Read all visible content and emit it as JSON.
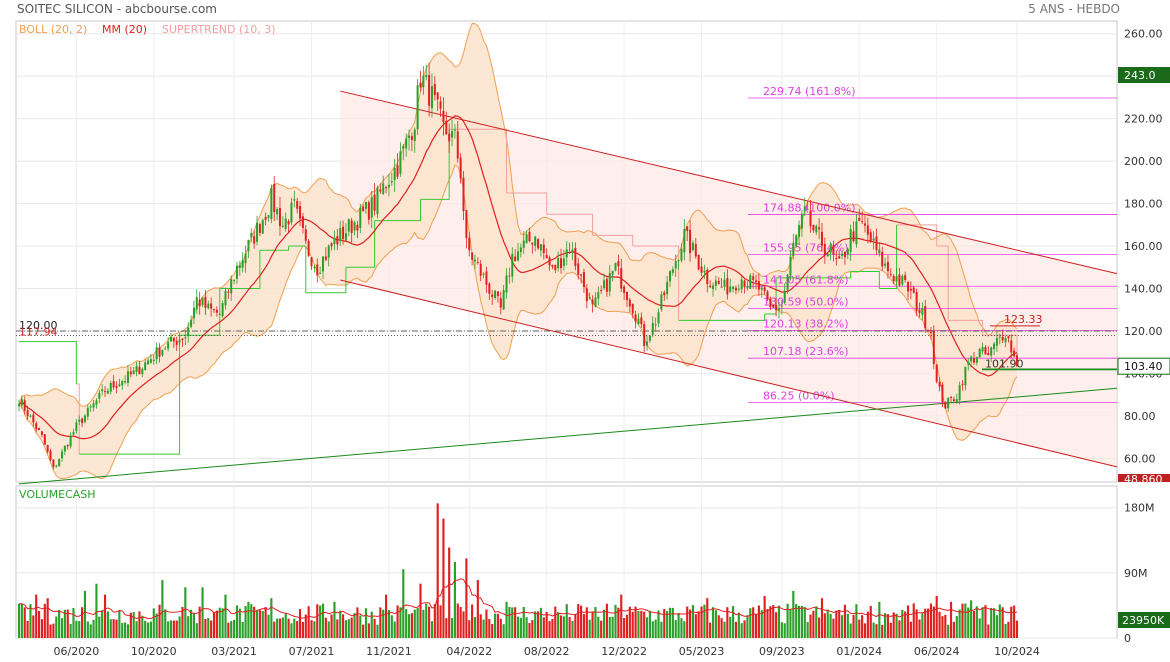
{
  "header": {
    "title": "SOITEC SILICON - abcbourse.com",
    "period": "5 ANS - HEBDO"
  },
  "legend": [
    {
      "label": "BOLL (20, 2)",
      "color": "#f0a050"
    },
    {
      "label": "MM (20)",
      "color": "#e02020"
    },
    {
      "label": "SUPERTREND (10, 3)",
      "color": "#f4a0a0"
    }
  ],
  "colors": {
    "up": "#2aa02a",
    "down": "#e02020",
    "boll": "#f0a050",
    "boll_fill": "#fbe3cc",
    "ma": "#e02020",
    "supertrend_up": "#33cc33",
    "supertrend_down": "#f4a0a0",
    "fib": "#e040e0",
    "channel": "#cc2020",
    "trend": "#1a8a1a",
    "last_price_bg": "#1a6a1a",
    "low_label_bg": "#c02020"
  },
  "chart_data": [
    {
      "type": "candlestick",
      "title": "",
      "ylim": [
        48.86,
        266
      ],
      "y_ticks": [
        "60.00",
        "80.00",
        "100.00",
        "120.00",
        "140.00",
        "160.00",
        "180.00",
        "200.00",
        "220.00",
        "240.00",
        "260.00"
      ],
      "x_ticks": [
        "06/2020",
        "10/2020",
        "03/2021",
        "07/2021",
        "11/2021",
        "04/2022",
        "08/2022",
        "12/2022",
        "05/2023",
        "09/2023",
        "01/2024",
        "06/2024",
        "10/2024"
      ],
      "last_price": "103.40",
      "high_price_label": "243.0",
      "low_price_label": "48.860",
      "horizontal_levels": [
        {
          "value": 120.0,
          "label": "120.00",
          "style": "dash-dot"
        },
        {
          "value": 117.94,
          "label": "117.94",
          "style": "dotted"
        }
      ],
      "fibonacci": [
        {
          "value": 229.74,
          "label": "229.74 (161.8%)"
        },
        {
          "value": 174.88,
          "label": "174.88 (100.0%)"
        },
        {
          "value": 155.95,
          "label": "155.95 (76.4%)"
        },
        {
          "value": 141.05,
          "label": "141.05 (61.8%)"
        },
        {
          "value": 130.59,
          "label": "130.59 (50.0%)"
        },
        {
          "value": 120.13,
          "label": "120.13 (38.2%)"
        },
        {
          "value": 107.18,
          "label": "107.18 (23.6%)"
        },
        {
          "value": 86.25,
          "label": "86.25 (0.0%)"
        }
      ],
      "annotations": [
        {
          "label": "123.33",
          "value": 123.33
        },
        {
          "label": "101.90",
          "value": 101.9
        }
      ],
      "price_path": [
        [
          0,
          88
        ],
        [
          8,
          70
        ],
        [
          12,
          55
        ],
        [
          20,
          75
        ],
        [
          30,
          92
        ],
        [
          40,
          100
        ],
        [
          50,
          112
        ],
        [
          58,
          118
        ],
        [
          62,
          135
        ],
        [
          66,
          130
        ],
        [
          70,
          128
        ],
        [
          76,
          150
        ],
        [
          82,
          165
        ],
        [
          86,
          176
        ],
        [
          88,
          182
        ],
        [
          92,
          170
        ],
        [
          96,
          178
        ],
        [
          100,
          160
        ],
        [
          104,
          150
        ],
        [
          110,
          162
        ],
        [
          116,
          170
        ],
        [
          120,
          175
        ],
        [
          124,
          180
        ],
        [
          128,
          190
        ],
        [
          132,
          198
        ],
        [
          135,
          208
        ],
        [
          138,
          220
        ],
        [
          140,
          240
        ],
        [
          144,
          230
        ],
        [
          148,
          215
        ],
        [
          152,
          210
        ],
        [
          154,
          195
        ],
        [
          156,
          160
        ],
        [
          160,
          150
        ],
        [
          164,
          140
        ],
        [
          168,
          130
        ],
        [
          172,
          155
        ],
        [
          176,
          160
        ],
        [
          180,
          165
        ],
        [
          186,
          148
        ],
        [
          192,
          160
        ],
        [
          196,
          145
        ],
        [
          200,
          130
        ],
        [
          204,
          140
        ],
        [
          208,
          150
        ],
        [
          212,
          138
        ],
        [
          216,
          125
        ],
        [
          218,
          115
        ],
        [
          222,
          125
        ],
        [
          228,
          150
        ],
        [
          232,
          165
        ],
        [
          236,
          155
        ],
        [
          240,
          145
        ],
        [
          246,
          140
        ],
        [
          252,
          145
        ],
        [
          258,
          140
        ],
        [
          262,
          130
        ],
        [
          266,
          132
        ],
        [
          270,
          160
        ],
        [
          274,
          175
        ],
        [
          278,
          165
        ],
        [
          282,
          158
        ],
        [
          286,
          150
        ],
        [
          290,
          165
        ],
        [
          294,
          170
        ],
        [
          298,
          160
        ],
        [
          302,
          150
        ],
        [
          306,
          145
        ],
        [
          310,
          140
        ],
        [
          314,
          130
        ],
        [
          318,
          120
        ],
        [
          320,
          95
        ],
        [
          323,
          85
        ],
        [
          327,
          90
        ],
        [
          331,
          105
        ],
        [
          335,
          110
        ],
        [
          338,
          108
        ],
        [
          341,
          115
        ],
        [
          344,
          120
        ],
        [
          348,
          103.4
        ]
      ],
      "supertrend_path": [
        [
          0,
          115,
          "up"
        ],
        [
          20,
          95,
          "down"
        ],
        [
          21,
          62,
          "up"
        ],
        [
          56,
          118,
          "up"
        ],
        [
          70,
          140,
          "up"
        ],
        [
          84,
          158,
          "up"
        ],
        [
          94,
          160,
          "up"
        ],
        [
          100,
          138,
          "up"
        ],
        [
          114,
          150,
          "up"
        ],
        [
          124,
          172,
          "up"
        ],
        [
          140,
          182,
          "up"
        ],
        [
          150,
          215,
          "down"
        ],
        [
          170,
          185,
          "down"
        ],
        [
          184,
          175,
          "down"
        ],
        [
          200,
          165,
          "down"
        ],
        [
          214,
          160,
          "down"
        ],
        [
          230,
          125,
          "up"
        ],
        [
          260,
          128,
          "up"
        ],
        [
          264,
          145,
          "up"
        ],
        [
          290,
          148,
          "up"
        ],
        [
          300,
          140,
          "up"
        ],
        [
          306,
          170,
          "down"
        ],
        [
          320,
          160,
          "down"
        ],
        [
          324,
          125,
          "down"
        ],
        [
          336,
          118,
          "down"
        ],
        [
          348,
          110,
          "down"
        ]
      ],
      "channel_upper": [
        [
          112,
          233
        ],
        [
          376,
          147
        ]
      ],
      "channel_lower": [
        [
          112,
          144
        ],
        [
          376,
          56
        ]
      ],
      "trend_line": [
        [
          0,
          48
        ],
        [
          376,
          93
        ]
      ]
    },
    {
      "type": "bar",
      "title": "VOLUMECASH",
      "ylim": [
        0,
        210
      ],
      "y_ticks": [
        "0",
        "90M",
        "180M"
      ],
      "last_value_label": "23950K",
      "unit": "M",
      "spikes": [
        [
          6,
          60
        ],
        [
          10,
          55
        ],
        [
          23,
          65
        ],
        [
          27,
          75
        ],
        [
          30,
          60
        ],
        [
          50,
          80
        ],
        [
          58,
          70
        ],
        [
          64,
          70
        ],
        [
          72,
          60
        ],
        [
          80,
          50
        ],
        [
          88,
          55
        ],
        [
          110,
          50
        ],
        [
          128,
          60
        ],
        [
          134,
          95
        ],
        [
          140,
          75
        ],
        [
          146,
          186
        ],
        [
          148,
          165
        ],
        [
          150,
          125
        ],
        [
          152,
          105
        ],
        [
          156,
          110
        ],
        [
          160,
          80
        ],
        [
          170,
          50
        ],
        [
          210,
          60
        ],
        [
          240,
          55
        ],
        [
          260,
          58
        ],
        [
          270,
          65
        ],
        [
          280,
          55
        ],
        [
          300,
          50
        ],
        [
          310,
          45
        ],
        [
          320,
          58
        ],
        [
          325,
          50
        ],
        [
          332,
          52
        ]
      ]
    }
  ]
}
